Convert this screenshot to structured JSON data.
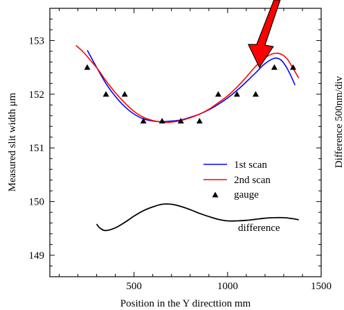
{
  "chart_data": {
    "type": "line",
    "xlabel": "Position in the Y directtion   mm",
    "ylabel": "Measured slit width   μm",
    "ylabel_right": "Difference   500nm/div",
    "xlim": [
      50,
      1500
    ],
    "ylim": [
      148.6,
      153.6
    ],
    "x_ticks": [
      500,
      1000,
      1500
    ],
    "y_ticks": [
      149,
      150,
      151,
      152,
      153
    ],
    "legend_position": "center-right",
    "annotation_text": "difference",
    "annotation_arrow_x": 1170,
    "series": [
      {
        "name": "1st scan",
        "color": "#0000ff",
        "x": [
          250,
          300,
          350,
          400,
          450,
          500,
          550,
          600,
          650,
          700,
          750,
          800,
          850,
          900,
          950,
          1000,
          1050,
          1100,
          1150,
          1200,
          1250,
          1280,
          1300,
          1320,
          1340,
          1360
        ],
        "y": [
          152.82,
          152.5,
          152.2,
          151.96,
          151.77,
          151.63,
          151.54,
          151.5,
          151.49,
          151.5,
          151.52,
          151.57,
          151.63,
          151.71,
          151.81,
          151.93,
          152.07,
          152.23,
          152.4,
          152.57,
          152.67,
          152.65,
          152.58,
          152.47,
          152.33,
          152.17
        ]
      },
      {
        "name": "2nd scan",
        "color": "#ff0000",
        "x": [
          190,
          230,
          270,
          310,
          350,
          400,
          450,
          500,
          550,
          600,
          650,
          700,
          750,
          800,
          850,
          900,
          950,
          1000,
          1050,
          1100,
          1150,
          1200,
          1250,
          1290,
          1320,
          1350,
          1380
        ],
        "y": [
          152.91,
          152.78,
          152.62,
          152.45,
          152.25,
          152.03,
          151.84,
          151.68,
          151.57,
          151.51,
          151.48,
          151.48,
          151.51,
          151.56,
          151.63,
          151.72,
          151.84,
          151.97,
          152.13,
          152.32,
          152.52,
          152.68,
          152.76,
          152.74,
          152.65,
          152.48,
          152.3
        ]
      },
      {
        "name": "gauge",
        "color": "#000000",
        "x": [
          250,
          350,
          450,
          550,
          650,
          750,
          850,
          950,
          1050,
          1150,
          1250,
          1350
        ],
        "y": [
          152.5,
          152.0,
          152.0,
          151.5,
          151.5,
          151.5,
          151.5,
          152.0,
          152.0,
          152.0,
          152.5,
          152.5
        ]
      },
      {
        "name": "difference",
        "color": "#000000",
        "x": [
          300,
          320,
          350,
          400,
          450,
          500,
          550,
          600,
          650,
          700,
          750,
          800,
          850,
          900,
          950,
          1000,
          1050,
          1100,
          1150,
          1200,
          1250,
          1300,
          1350,
          1380
        ],
        "y": [
          149.58,
          149.5,
          149.46,
          149.51,
          149.61,
          149.73,
          149.83,
          149.9,
          149.95,
          149.95,
          149.91,
          149.85,
          149.78,
          149.72,
          149.67,
          149.64,
          149.64,
          149.65,
          149.67,
          149.69,
          149.7,
          149.7,
          149.68,
          149.66
        ]
      }
    ]
  }
}
